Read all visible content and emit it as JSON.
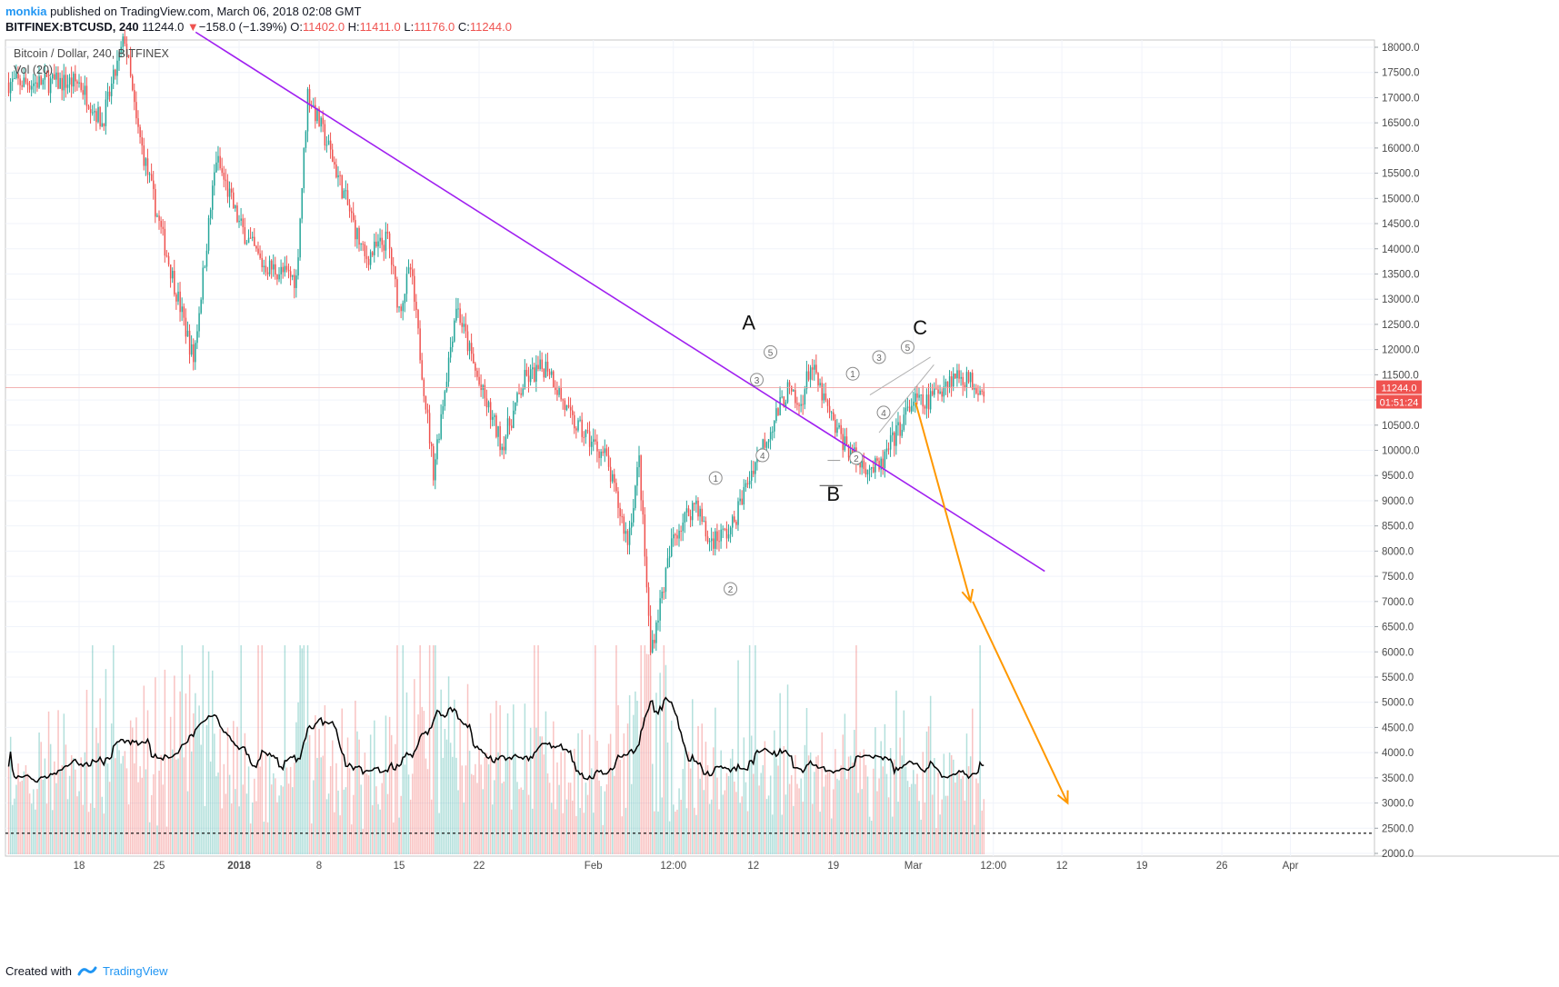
{
  "header": {
    "user": "monkia",
    "published_text": "published on TradingView.com, March 06, 2018 02:08 GMT"
  },
  "symbol_line": {
    "symbol": "BITFINEX:BTCUSD, 240",
    "last": "11244.0",
    "change_arrow": "▼",
    "change": "−158.0 (−1.39%)",
    "open_label": "O:",
    "open": "11402.0",
    "high_label": "H:",
    "high": "11411.0",
    "low_label": "L:",
    "low": "11176.0",
    "close_label": "C:",
    "close": "11244.0"
  },
  "legend": {
    "series_title": "Bitcoin / Dollar, 240, BITFINEX",
    "volume_title": "Vol (20)"
  },
  "price_badge": {
    "value": "11244.0",
    "countdown": "01:51:24",
    "color": "#ef5350"
  },
  "footer": {
    "created_with": "Created with",
    "brand": "TradingView",
    "logo_icon": "tradingview-logo-icon"
  },
  "colors": {
    "up": "#26a69a",
    "down": "#ef5350",
    "trendline": "#a020f0",
    "projection": "#ff9800",
    "volume_ma": "#000000"
  },
  "chart_data": {
    "type": "candlestick",
    "title": "Bitcoin / Dollar, 240, BITFINEX",
    "y_axis": {
      "ylim": [
        1900,
        18300
      ],
      "ticks": [
        2000,
        2500,
        3000,
        3500,
        4000,
        4500,
        5000,
        5500,
        6000,
        6500,
        7000,
        7500,
        8000,
        8500,
        9000,
        9500,
        10000,
        10500,
        11000,
        11500,
        12000,
        12500,
        13000,
        13500,
        14000,
        14500,
        15000,
        15500,
        16000,
        16500,
        17000,
        17500,
        18000
      ],
      "tick_labels": [
        "2000.0",
        "2500.0",
        "3000.0",
        "3500.0",
        "4000.0",
        "4500.0",
        "5000.0",
        "5500.0",
        "6000.0",
        "6500.0",
        "7000.0",
        "7500.0",
        "8000.0",
        "8500.0",
        "9000.0",
        "9500.0",
        "10000.0",
        "10500.0",
        "11000.0",
        "11500.0",
        "12000.0",
        "12500.0",
        "13000.0",
        "13500.0",
        "14000.0",
        "14500.0",
        "15000.0",
        "15500.0",
        "16000.0",
        "16500.0",
        "17000.0",
        "17500.0",
        "18000.0"
      ]
    },
    "x_axis": {
      "tick_labels": [
        "18",
        "25",
        "2018",
        "8",
        "15",
        "22",
        "Feb",
        "12:00",
        "12",
        "19",
        "Mar",
        "12:00",
        "12",
        "19",
        "26",
        "Apr"
      ],
      "bold_labels": [
        "2018"
      ],
      "tick_days": [
        0,
        7,
        14,
        21,
        28,
        35,
        45,
        52,
        59,
        66,
        73,
        80,
        86,
        93,
        100,
        106
      ]
    },
    "price_path": {
      "description_days_from_dec18": [
        0,
        2,
        4,
        5,
        7,
        10,
        12,
        14,
        16,
        19,
        20,
        22,
        25,
        27,
        28,
        29,
        31,
        33,
        35,
        37,
        39,
        41,
        43,
        46,
        48,
        49,
        50,
        52,
        54,
        55,
        57,
        59,
        62,
        63,
        64,
        66,
        68,
        70,
        71,
        73,
        74,
        76,
        77,
        79
      ],
      "close": [
        17300,
        16500,
        18200,
        16500,
        14500,
        11800,
        15800,
        14500,
        13700,
        13400,
        17100,
        15900,
        13800,
        14200,
        12800,
        13600,
        9600,
        12900,
        11300,
        10100,
        11400,
        11700,
        10600,
        9900,
        8200,
        9800,
        6000,
        8300,
        9000,
        8200,
        8400,
        9700,
        11200,
        10800,
        11700,
        10500,
        9800,
        9600,
        10100,
        11000,
        10900,
        11400,
        11500,
        11244
      ]
    },
    "volume_ma_description": "20-period volume moving average",
    "volume_dashed_level": 2400,
    "trendline": {
      "from": {
        "day": 10.2,
        "price": 18300
      },
      "to": {
        "day": 84.5,
        "price": 7600
      }
    },
    "wave_labels": [
      {
        "text": "A",
        "day": 58.6,
        "price": 12400
      },
      {
        "text": "B",
        "day": 66.0,
        "price": 9000
      },
      {
        "text": "C",
        "day": 73.6,
        "price": 12300
      }
    ],
    "wave_counts": [
      {
        "text": "1",
        "day": 55.7,
        "price": 9450
      },
      {
        "text": "2",
        "day": 57.0,
        "price": 7250
      },
      {
        "text": "3",
        "day": 59.3,
        "price": 11400
      },
      {
        "text": "4",
        "day": 59.8,
        "price": 9900
      },
      {
        "text": "5",
        "day": 60.5,
        "price": 11950
      },
      {
        "text": "1",
        "day": 67.7,
        "price": 11520
      },
      {
        "text": "2",
        "day": 68.0,
        "price": 9850
      },
      {
        "text": "3",
        "day": 70.0,
        "price": 11850
      },
      {
        "text": "4",
        "day": 70.4,
        "price": 10750
      },
      {
        "text": "5",
        "day": 72.5,
        "price": 12050
      }
    ],
    "channel": {
      "lines": [
        [
          {
            "day": 69.2,
            "price": 11100
          },
          {
            "day": 74.5,
            "price": 11850
          }
        ],
        [
          {
            "day": 70.0,
            "price": 10350
          },
          {
            "day": 74.8,
            "price": 11700
          }
        ]
      ]
    },
    "b_support_line": {
      "from": {
        "day": 64.8,
        "price": 9300
      },
      "to": {
        "day": 66.8,
        "price": 9300
      }
    },
    "b_resist_line": {
      "from": {
        "day": 65.5,
        "price": 9800
      },
      "to": {
        "day": 66.6,
        "price": 9800
      }
    },
    "projection_arrows": [
      {
        "from": {
          "day": 73.2,
          "price": 10950
        },
        "to": {
          "day": 78.0,
          "price": 7000
        }
      },
      {
        "from": {
          "day": 78.2,
          "price": 7000
        },
        "to": {
          "day": 86.5,
          "price": 3000
        }
      }
    ]
  }
}
